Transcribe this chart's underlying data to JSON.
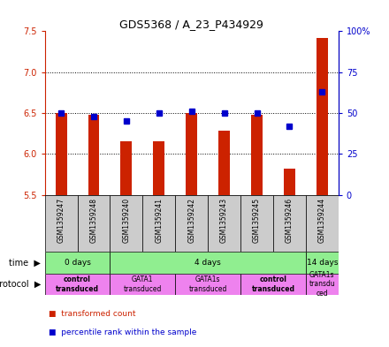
{
  "title": "GDS5368 / A_23_P434929",
  "samples": [
    "GSM1359247",
    "GSM1359248",
    "GSM1359240",
    "GSM1359241",
    "GSM1359242",
    "GSM1359243",
    "GSM1359245",
    "GSM1359246",
    "GSM1359244"
  ],
  "red_values": [
    6.5,
    6.48,
    6.15,
    6.15,
    6.5,
    6.28,
    6.48,
    5.82,
    7.42
  ],
  "blue_values": [
    50,
    48,
    45,
    50,
    51,
    50,
    50,
    42,
    63
  ],
  "ylim_left": [
    5.5,
    7.5
  ],
  "ylim_right": [
    0,
    100
  ],
  "yticks_left": [
    5.5,
    6.0,
    6.5,
    7.0,
    7.5
  ],
  "yticks_right": [
    0,
    25,
    50,
    75,
    100
  ],
  "ytick_labels_right": [
    "0",
    "25",
    "50",
    "75",
    "100%"
  ],
  "bar_color": "#cc2200",
  "dot_color": "#0000cc",
  "background_color": "#ffffff",
  "sample_bg_color": "#cccccc",
  "time_green": "#90ee90",
  "proto_pink": "#ee82ee",
  "bar_width": 0.35,
  "time_spans": [
    [
      0,
      1,
      "0 days"
    ],
    [
      2,
      7,
      "4 days"
    ],
    [
      8,
      8,
      "14 days"
    ]
  ],
  "proto_spans": [
    [
      0,
      1,
      "control\ntransduced",
      true
    ],
    [
      2,
      3,
      "GATA1\ntransduced",
      false
    ],
    [
      4,
      5,
      "GATA1s\ntransduced",
      false
    ],
    [
      6,
      7,
      "control\ntransduced",
      true
    ],
    [
      8,
      8,
      "GATA1s\ntransdu\nced",
      false
    ]
  ]
}
